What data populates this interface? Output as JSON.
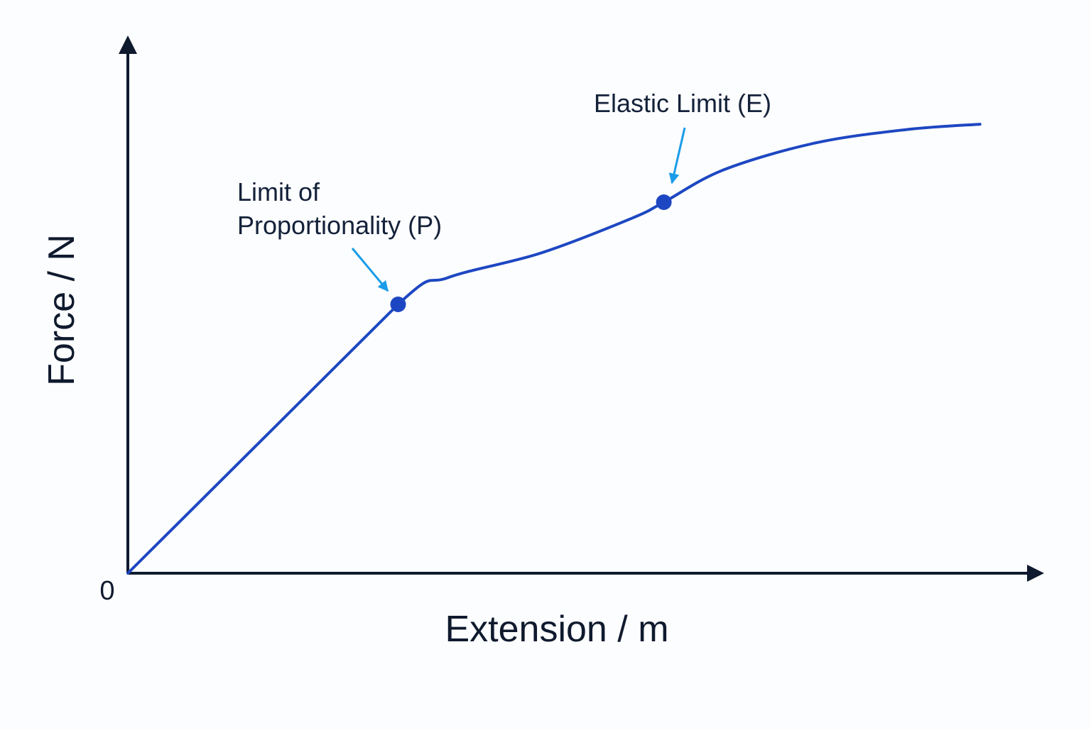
{
  "chart_data": {
    "type": "line",
    "title": "",
    "xlabel": "Extension / m",
    "ylabel": "Force / N",
    "origin_label": "0",
    "xlim": [
      0,
      100
    ],
    "ylim": [
      0,
      100
    ],
    "grid": false,
    "series": [
      {
        "x": [
          0,
          29.5,
          35,
          45,
          55,
          58.5,
          65,
          75,
          85,
          93
        ],
        "y": [
          0,
          50,
          55,
          59.5,
          66,
          69,
          75,
          80,
          82.5,
          83.5
        ]
      }
    ],
    "points": [
      {
        "label": "P",
        "x": 29.5,
        "y": 50
      },
      {
        "label": "E",
        "x": 58.5,
        "y": 69
      }
    ],
    "annotations": [
      {
        "lines": [
          "Limit of",
          "Proportionality (P)"
        ],
        "target": "P"
      },
      {
        "lines": [
          "Elastic Limit (E)"
        ],
        "target": "E"
      }
    ]
  },
  "colors": {
    "axis": "#0f1a2e",
    "curve": "#1d47c2",
    "marker": "#1d47c2",
    "arrow": "#1a9ce8",
    "text": "#14213a"
  }
}
